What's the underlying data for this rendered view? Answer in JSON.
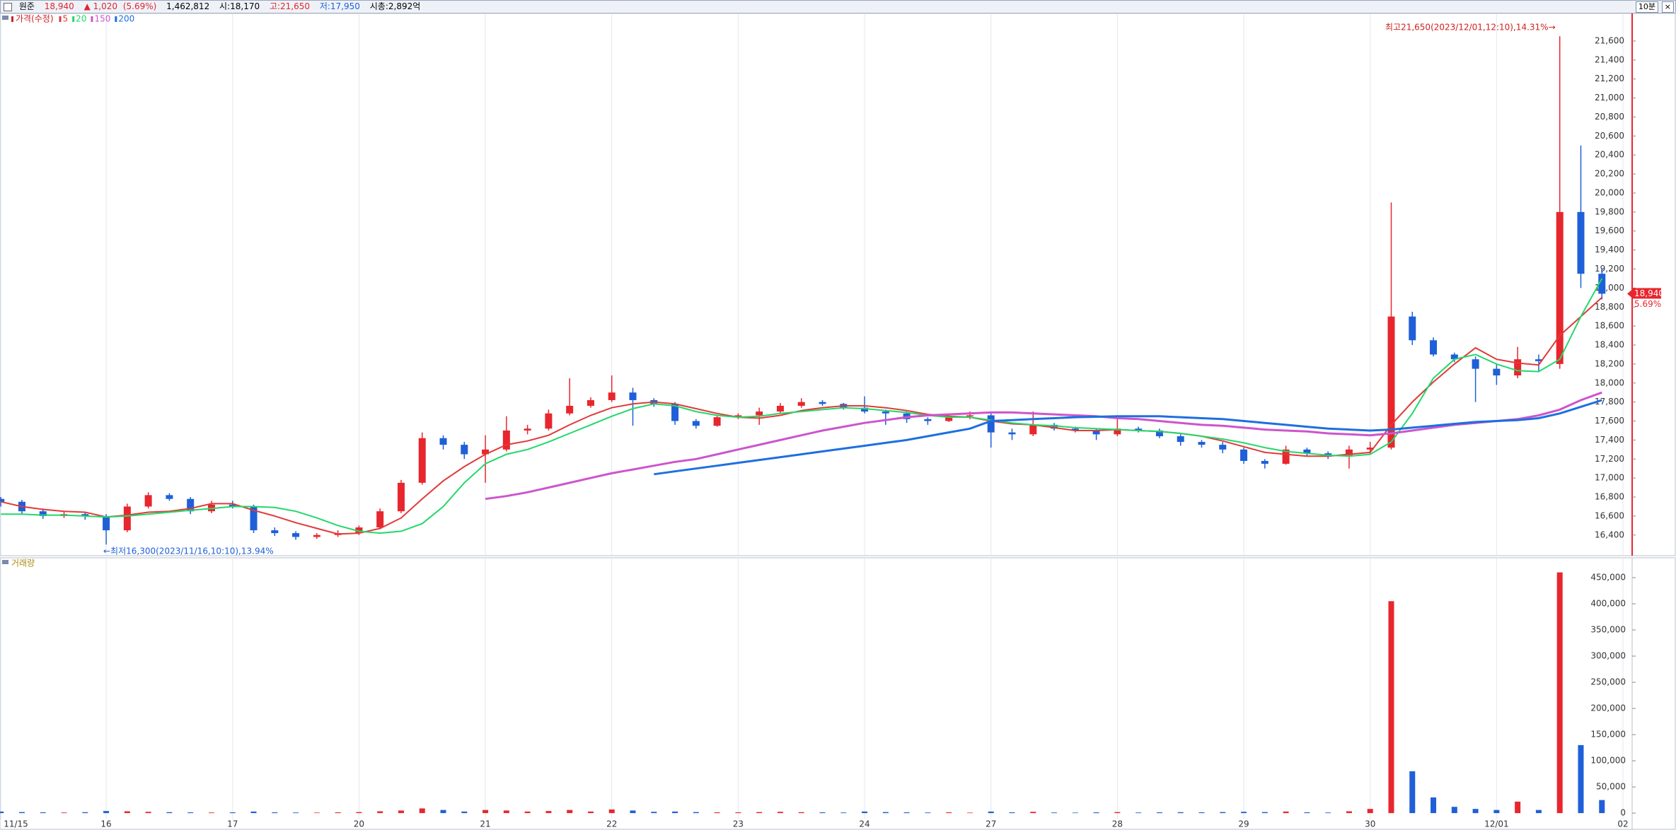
{
  "header": {
    "name": "원준",
    "price": "18,940",
    "change": "▲ 1,020",
    "change_pct": "(5.69%)",
    "volume": "1,462,812",
    "open": "시:18,170",
    "high": "고:21,650",
    "low": "저:17,950",
    "market_cap": "시총:2,892억",
    "interval": "10분"
  },
  "chart_data": [
    {
      "type": "candlestick",
      "legend_title": "가격(수정)",
      "x": [
        1,
        2,
        3,
        4,
        5,
        6,
        7,
        8,
        9,
        10,
        11,
        12,
        13,
        14,
        15,
        16,
        17,
        18,
        19,
        20,
        21,
        22,
        23,
        24,
        25,
        26,
        27,
        28,
        29,
        30,
        31,
        32,
        33,
        34,
        35,
        36,
        37,
        38,
        39,
        40,
        41,
        42,
        43,
        44,
        45,
        46,
        47,
        48,
        49,
        50,
        51,
        52,
        53,
        54,
        55,
        56,
        57,
        58,
        59,
        60,
        61,
        62,
        63,
        64,
        65,
        66,
        67,
        68,
        69,
        70,
        71,
        72,
        73,
        74,
        75,
        76,
        77
      ],
      "xlim": [
        0.96,
        78.2
      ],
      "ylim": [
        16190,
        21890
      ],
      "yticks": [
        {
          "value": 16400,
          "label": "16,400"
        },
        {
          "value": 16600,
          "label": "16,600"
        },
        {
          "value": 16800,
          "label": "16,800"
        },
        {
          "value": 17000,
          "label": "17,000"
        },
        {
          "value": 17200,
          "label": "17,200"
        },
        {
          "value": 17400,
          "label": "17,400"
        },
        {
          "value": 17600,
          "label": "17,600"
        },
        {
          "value": 17800,
          "label": "17,800"
        },
        {
          "value": 18000,
          "label": "18,000"
        },
        {
          "value": 18200,
          "label": "18,200"
        },
        {
          "value": 18400,
          "label": "18,400"
        },
        {
          "value": 18600,
          "label": "18,600"
        },
        {
          "value": 18800,
          "label": "18,800"
        },
        {
          "value": 19000,
          "label": "19,000"
        },
        {
          "value": 19200,
          "label": "19,200"
        },
        {
          "value": 19400,
          "label": "19,400"
        },
        {
          "value": 19600,
          "label": "19,600"
        },
        {
          "value": 19800,
          "label": "19,800"
        },
        {
          "value": 20000,
          "label": "20,000"
        },
        {
          "value": 20200,
          "label": "20,200"
        },
        {
          "value": 20400,
          "label": "20,400"
        },
        {
          "value": 20600,
          "label": "20,600"
        },
        {
          "value": 20800,
          "label": "20,800"
        },
        {
          "value": 21000,
          "label": "21,000"
        },
        {
          "value": 21200,
          "label": "21,200"
        },
        {
          "value": 21400,
          "label": "21,400"
        },
        {
          "value": 21600,
          "label": "21,600"
        }
      ],
      "up_color": "#e8262d",
      "down_color": "#1f5fd8",
      "ohlc": [
        [
          16780,
          16800,
          16700,
          16750
        ],
        [
          16750,
          16770,
          16620,
          16650
        ],
        [
          16650,
          16680,
          16570,
          16600
        ],
        [
          16600,
          16650,
          16580,
          16620
        ],
        [
          16620,
          16640,
          16560,
          16600
        ],
        [
          16600,
          16620,
          16300,
          16450
        ],
        [
          16450,
          16730,
          16430,
          16700
        ],
        [
          16700,
          16850,
          16680,
          16820
        ],
        [
          16820,
          16840,
          16760,
          16780
        ],
        [
          16780,
          16800,
          16620,
          16650
        ],
        [
          16650,
          16760,
          16630,
          16720
        ],
        [
          16720,
          16760,
          16680,
          16700
        ],
        [
          16700,
          16720,
          16420,
          16450
        ],
        [
          16450,
          16480,
          16390,
          16420
        ],
        [
          16420,
          16440,
          16350,
          16380
        ],
        [
          16380,
          16420,
          16360,
          16400
        ],
        [
          16400,
          16450,
          16380,
          16420
        ],
        [
          16420,
          16500,
          16400,
          16480
        ],
        [
          16480,
          16680,
          16460,
          16650
        ],
        [
          16650,
          16980,
          16630,
          16950
        ],
        [
          16950,
          17480,
          16930,
          17420
        ],
        [
          17420,
          17450,
          17300,
          17350
        ],
        [
          17350,
          17380,
          17200,
          17250
        ],
        [
          17250,
          17450,
          16950,
          17300
        ],
        [
          17300,
          17650,
          17280,
          17500
        ],
        [
          17500,
          17560,
          17460,
          17520
        ],
        [
          17520,
          17720,
          17500,
          17680
        ],
        [
          17680,
          18050,
          17660,
          17760
        ],
        [
          17760,
          17850,
          17740,
          17820
        ],
        [
          17820,
          18080,
          17800,
          17900
        ],
        [
          17900,
          17950,
          17550,
          17820
        ],
        [
          17820,
          17840,
          17750,
          17780
        ],
        [
          17780,
          17800,
          17560,
          17600
        ],
        [
          17600,
          17620,
          17520,
          17550
        ],
        [
          17550,
          17660,
          17540,
          17640
        ],
        [
          17640,
          17680,
          17620,
          17660
        ],
        [
          17660,
          17740,
          17560,
          17700
        ],
        [
          17700,
          17790,
          17680,
          17760
        ],
        [
          17760,
          17840,
          17740,
          17800
        ],
        [
          17800,
          17820,
          17760,
          17780
        ],
        [
          17780,
          17790,
          17720,
          17740
        ],
        [
          17740,
          17860,
          17680,
          17700
        ],
        [
          17700,
          17720,
          17560,
          17680
        ],
        [
          17680,
          17700,
          17580,
          17620
        ],
        [
          17620,
          17640,
          17560,
          17600
        ],
        [
          17600,
          17680,
          17590,
          17650
        ],
        [
          17650,
          17700,
          17620,
          17660
        ],
        [
          17660,
          17680,
          17320,
          17480
        ],
        [
          17480,
          17520,
          17400,
          17460
        ],
        [
          17460,
          17700,
          17440,
          17560
        ],
        [
          17560,
          17580,
          17500,
          17520
        ],
        [
          17520,
          17540,
          17480,
          17500
        ],
        [
          17500,
          17520,
          17400,
          17460
        ],
        [
          17460,
          17620,
          17440,
          17520
        ],
        [
          17520,
          17540,
          17480,
          17500
        ],
        [
          17500,
          17520,
          17420,
          17440
        ],
        [
          17440,
          17460,
          17340,
          17380
        ],
        [
          17380,
          17400,
          17320,
          17350
        ],
        [
          17350,
          17380,
          17260,
          17300
        ],
        [
          17300,
          17320,
          17150,
          17180
        ],
        [
          17180,
          17200,
          17100,
          17150
        ],
        [
          17150,
          17340,
          17140,
          17300
        ],
        [
          17300,
          17320,
          17230,
          17260
        ],
        [
          17260,
          17280,
          17200,
          17240
        ],
        [
          17240,
          17340,
          17100,
          17300
        ],
        [
          17300,
          17380,
          17250,
          17320
        ],
        [
          17320,
          19900,
          17300,
          18700
        ],
        [
          18700,
          18750,
          18400,
          18450
        ],
        [
          18450,
          18480,
          18280,
          18300
        ],
        [
          18300,
          18320,
          18220,
          18250
        ],
        [
          18250,
          18280,
          17800,
          18150
        ],
        [
          18150,
          18200,
          17980,
          18080
        ],
        [
          18080,
          18380,
          18050,
          18250
        ],
        [
          18250,
          18300,
          18120,
          18230
        ],
        [
          18200,
          21650,
          18150,
          19800
        ],
        [
          19800,
          20500,
          19000,
          19150
        ],
        [
          19150,
          19200,
          18880,
          18940
        ]
      ],
      "series": [
        {
          "name": "5",
          "color": "#e03a3a",
          "values": [
            16750,
            16700,
            16670,
            16650,
            16640,
            16590,
            16610,
            16640,
            16650,
            16680,
            16730,
            16730,
            16660,
            16600,
            16530,
            16470,
            16410,
            16420,
            16470,
            16580,
            16780,
            16970,
            17120,
            17250,
            17350,
            17390,
            17450,
            17560,
            17660,
            17740,
            17780,
            17800,
            17780,
            17730,
            17680,
            17640,
            17630,
            17660,
            17710,
            17740,
            17760,
            17760,
            17740,
            17710,
            17670,
            17650,
            17640,
            17600,
            17570,
            17560,
            17530,
            17500,
            17500,
            17510,
            17500,
            17490,
            17470,
            17440,
            17390,
            17330,
            17270,
            17250,
            17230,
            17230,
            17250,
            17270,
            17560,
            17800,
            18010,
            18200,
            18370,
            18250,
            18210,
            18190,
            18500,
            18700,
            18900
          ]
        },
        {
          "name": "20",
          "color": "#22d86a",
          "values": [
            16620,
            16620,
            16610,
            16610,
            16600,
            16590,
            16600,
            16620,
            16640,
            16660,
            16680,
            16700,
            16700,
            16690,
            16650,
            16580,
            16500,
            16440,
            16420,
            16440,
            16520,
            16700,
            16950,
            17150,
            17250,
            17300,
            17380,
            17470,
            17560,
            17650,
            17730,
            17780,
            17760,
            17700,
            17660,
            17640,
            17650,
            17680,
            17700,
            17720,
            17740,
            17730,
            17710,
            17690,
            17660,
            17640,
            17640,
            17610,
            17580,
            17560,
            17550,
            17530,
            17520,
            17510,
            17500,
            17490,
            17470,
            17440,
            17410,
            17370,
            17320,
            17280,
            17260,
            17240,
            17230,
            17250,
            17380,
            17680,
            18050,
            18250,
            18300,
            18200,
            18130,
            18120,
            18250,
            18700,
            19100
          ]
        },
        {
          "name": "150",
          "color": "#cc55cc",
          "values": [
            null,
            null,
            null,
            null,
            null,
            null,
            null,
            null,
            null,
            null,
            null,
            null,
            null,
            null,
            null,
            null,
            null,
            null,
            null,
            null,
            null,
            null,
            null,
            16780,
            16810,
            16850,
            16900,
            16950,
            17000,
            17050,
            17090,
            17130,
            17170,
            17200,
            17250,
            17300,
            17350,
            17400,
            17450,
            17500,
            17540,
            17580,
            17610,
            17640,
            17660,
            17670,
            17680,
            17690,
            17690,
            17680,
            17670,
            17660,
            17650,
            17630,
            17620,
            17600,
            17580,
            17560,
            17550,
            17530,
            17510,
            17500,
            17490,
            17470,
            17460,
            17450,
            17470,
            17500,
            17530,
            17560,
            17580,
            17600,
            17620,
            17660,
            17720,
            17820,
            17900
          ]
        },
        {
          "name": "200",
          "color": "#1e6fe0",
          "values": [
            null,
            null,
            null,
            null,
            null,
            null,
            null,
            null,
            null,
            null,
            null,
            null,
            null,
            null,
            null,
            null,
            null,
            null,
            null,
            null,
            null,
            null,
            null,
            null,
            null,
            null,
            null,
            null,
            null,
            null,
            null,
            17040,
            17070,
            17100,
            17130,
            17160,
            17190,
            17220,
            17250,
            17280,
            17310,
            17340,
            17370,
            17400,
            17440,
            17480,
            17520,
            17600,
            17610,
            17620,
            17630,
            17640,
            17645,
            17650,
            17650,
            17650,
            17640,
            17630,
            17620,
            17600,
            17580,
            17560,
            17540,
            17520,
            17510,
            17500,
            17510,
            17530,
            17550,
            17570,
            17590,
            17600,
            17610,
            17630,
            17680,
            17750,
            17820
          ]
        }
      ],
      "high_annotation": "최고21,650(2023/12/01,12:10),14.31%→",
      "low_annotation": "←최저16,300(2023/11/16,10:10),13.94%",
      "last_price": "18,940",
      "last_change": "5.69%"
    },
    {
      "type": "bar",
      "title": "거래량",
      "values": [
        3000,
        2000,
        1500,
        1200,
        1800,
        4000,
        3500,
        2500,
        1800,
        1500,
        1200,
        1500,
        3000,
        1500,
        1200,
        1000,
        1500,
        2000,
        3500,
        5000,
        9000,
        6000,
        3000,
        6000,
        5000,
        3000,
        4000,
        6000,
        3000,
        7000,
        5000,
        2500,
        3000,
        2000,
        1500,
        1500,
        2000,
        2500,
        1800,
        1500,
        1200,
        3000,
        2000,
        1500,
        1200,
        1500,
        1000,
        3000,
        1500,
        2500,
        1200,
        1000,
        1500,
        2000,
        1200,
        1500,
        1800,
        1500,
        2000,
        2500,
        2000,
        3000,
        1500,
        1200,
        3500,
        8000,
        405000,
        80000,
        30000,
        12000,
        8000,
        6000,
        22000,
        6000,
        460000,
        130000,
        25000
      ],
      "ylim": [
        -12000,
        486500
      ],
      "yticks": [
        0,
        {
          "value": 50000,
          "label": "50,000"
        },
        {
          "value": 100000,
          "label": "100,000"
        },
        {
          "value": 150000,
          "label": "150,000"
        },
        {
          "value": 200000,
          "label": "200,000"
        },
        {
          "value": 250000,
          "label": "250,000"
        },
        {
          "value": 300000,
          "label": "300,000"
        },
        {
          "value": 350000,
          "label": "350,000"
        },
        {
          "value": 400000,
          "label": "400,000"
        },
        {
          "value": 450000,
          "label": "450,000"
        }
      ],
      "xticks": [
        {
          "value": 1,
          "label": "11/15"
        },
        {
          "value": 6,
          "label": "16"
        },
        {
          "value": 12,
          "label": "17"
        },
        {
          "value": 18,
          "label": "20"
        },
        {
          "value": 24,
          "label": "21"
        },
        {
          "value": 30,
          "label": "22"
        },
        {
          "value": 36,
          "label": "23"
        },
        {
          "value": 42,
          "label": "24"
        },
        {
          "value": 48,
          "label": "27"
        },
        {
          "value": 54,
          "label": "28"
        },
        {
          "value": 60,
          "label": "29"
        },
        {
          "value": 66,
          "label": "30"
        },
        {
          "value": 72,
          "label": "12/01"
        },
        {
          "value": 78,
          "label": "02"
        }
      ]
    }
  ]
}
